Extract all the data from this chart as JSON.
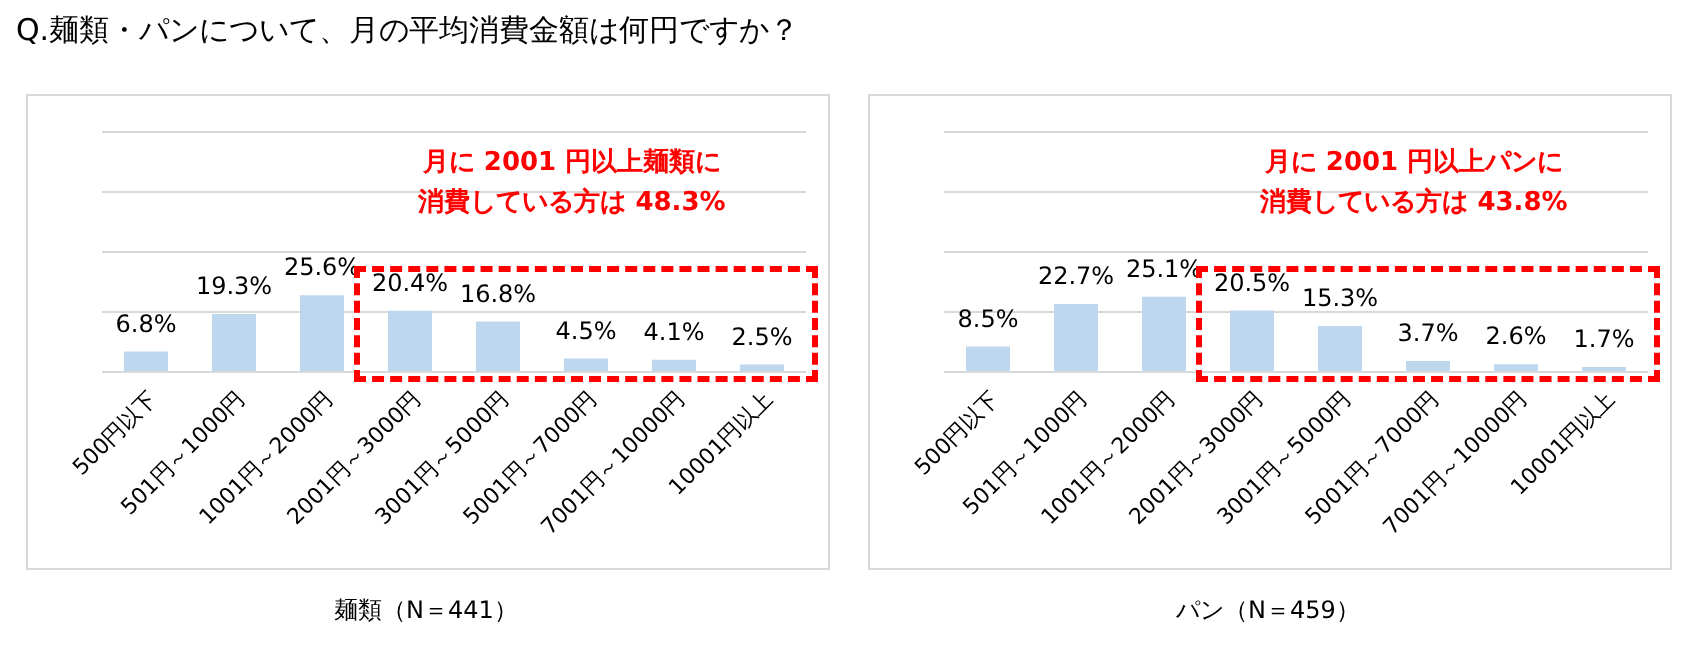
{
  "chart_data": [
    {
      "type": "bar",
      "title": "Q.麺類・パンについて、月の平均消費金額は何円ですか？",
      "xlabel": "麺類（N＝441）",
      "categories": [
        "500円以下",
        "501円～1000円",
        "1001円～2000円",
        "2001円～3000円",
        "3001円～5000円",
        "5001円～7000円",
        "7001円～10000円",
        "10001円以上"
      ],
      "values": [
        6.8,
        19.3,
        25.6,
        20.4,
        16.8,
        4.5,
        4.1,
        2.5
      ],
      "value_labels": [
        "6.8%",
        "19.3%",
        "25.6%",
        "20.4%",
        "16.8%",
        "4.5%",
        "4.1%",
        "2.5%"
      ],
      "color": "#bdd7ee",
      "ylim": [
        0,
        80
      ],
      "yticks": [
        {
          "value": 0,
          "label": null
        },
        {
          "value": 20,
          "label": null
        },
        {
          "value": 40,
          "label": null
        },
        {
          "value": 60,
          "label": null
        },
        {
          "value": 80,
          "label": null
        }
      ],
      "grid": "y",
      "tick_labels": "x",
      "annotations": [
        "月に 2001 円以上麺類に消費している方は 48.3%"
      ]
    },
    {
      "type": "bar",
      "xlabel": "パン（N＝459）",
      "categories": [
        "500円以下",
        "501円～1000円",
        "1001円～2000円",
        "2001円～3000円",
        "3001円～5000円",
        "5001円～7000円",
        "7001円～10000円",
        "10001円以上"
      ],
      "values": [
        8.5,
        22.7,
        25.1,
        20.5,
        15.3,
        3.7,
        2.6,
        1.7
      ],
      "value_labels": [
        "8.5%",
        "22.7%",
        "25.1%",
        "20.5%",
        "15.3%",
        "3.7%",
        "2.6%",
        "1.7%"
      ],
      "color": "#bdd7ee",
      "ylim": [
        0,
        80
      ],
      "yticks": [
        {
          "value": 0,
          "label": null
        },
        {
          "value": 20,
          "label": null
        },
        {
          "value": 40,
          "label": null
        },
        {
          "value": 60,
          "label": null
        },
        {
          "value": 80,
          "label": null
        }
      ],
      "grid": "y",
      "tick_labels": "x",
      "annotations": [
        "月に 2001 円以上パンに消費している方は 43.8%"
      ]
    }
  ]
}
